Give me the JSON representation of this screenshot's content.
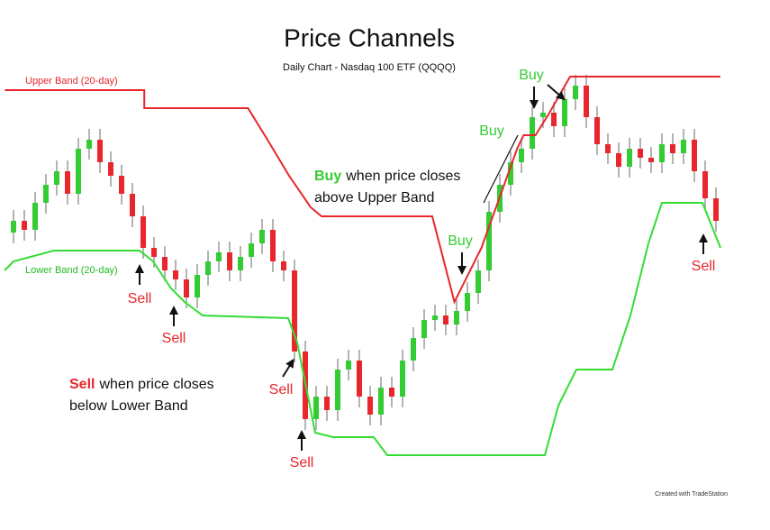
{
  "chart_data": {
    "type": "candlestick",
    "title": "Price Channels",
    "subtitle": "Daily Chart - Nasdaq 100 ETF (QQQQ)",
    "xlim": [
      -1.25,
      65.75
    ],
    "ylim": [
      0,
      450
    ],
    "up_color": "#33cc33",
    "down_color": "#e8262b",
    "wick_color": "#9a9a9a",
    "open": [
      262,
      275,
      265,
      295,
      315,
      330,
      305,
      355,
      365,
      340,
      325,
      305,
      280,
      245,
      235,
      220,
      210,
      190,
      215,
      230,
      240,
      220,
      235,
      250,
      265,
      230,
      220,
      130,
      55,
      80,
      65,
      110,
      120,
      80,
      60,
      90,
      80,
      120,
      145,
      165,
      170,
      160,
      175,
      195,
      220,
      285,
      315,
      340,
      355,
      390,
      395,
      380,
      410,
      425,
      390,
      360,
      350,
      335,
      355,
      345,
      340,
      360,
      350,
      365,
      330,
      300
    ],
    "high": [
      287,
      287,
      307,
      327,
      342,
      342,
      367,
      377,
      377,
      352,
      337,
      317,
      292,
      257,
      247,
      232,
      222,
      227,
      242,
      252,
      252,
      247,
      262,
      277,
      277,
      242,
      232,
      142,
      92,
      92,
      122,
      132,
      132,
      92,
      102,
      102,
      132,
      157,
      177,
      182,
      182,
      187,
      207,
      232,
      297,
      327,
      352,
      367,
      402,
      407,
      407,
      422,
      437,
      437,
      402,
      372,
      362,
      367,
      367,
      357,
      372,
      372,
      377,
      377,
      342,
      312
    ],
    "low": [
      250,
      253,
      253,
      283,
      303,
      293,
      293,
      343,
      328,
      313,
      293,
      268,
      233,
      223,
      208,
      198,
      178,
      178,
      203,
      218,
      208,
      208,
      223,
      238,
      218,
      208,
      118,
      43,
      43,
      53,
      53,
      98,
      68,
      48,
      48,
      68,
      68,
      108,
      133,
      153,
      148,
      148,
      163,
      183,
      208,
      273,
      303,
      328,
      343,
      378,
      368,
      368,
      398,
      378,
      348,
      338,
      323,
      323,
      333,
      328,
      328,
      338,
      338,
      318,
      288,
      263
    ],
    "close": [
      275,
      265,
      295,
      315,
      330,
      305,
      355,
      365,
      340,
      325,
      305,
      280,
      245,
      235,
      220,
      210,
      190,
      215,
      230,
      240,
      220,
      235,
      250,
      265,
      230,
      220,
      130,
      55,
      80,
      65,
      110,
      120,
      80,
      60,
      90,
      80,
      120,
      145,
      165,
      170,
      160,
      175,
      195,
      220,
      285,
      315,
      340,
      355,
      390,
      395,
      380,
      410,
      425,
      390,
      360,
      350,
      335,
      355,
      345,
      340,
      360,
      350,
      365,
      330,
      300,
      275
    ],
    "series": [
      {
        "name": "Upper Band (20-day)",
        "color": "#e8262b",
        "x": [
          -0.8,
          12.1,
          12.1,
          21.7,
          23.5,
          25.5,
          27.5,
          28.5,
          38.75,
          40.8,
          43.3,
          44.5,
          46.6,
          47.2,
          48.3,
          49.6,
          51.5,
          65.4
        ],
        "values": [
          420,
          420,
          400,
          400,
          365,
          325,
          290,
          280,
          280,
          185,
          245,
          285,
          355,
          370,
          370,
          395,
          435,
          435
        ]
      },
      {
        "name": "Lower Band (20-day)",
        "color": "#33dd33",
        "x": [
          -0.83,
          0,
          3.75,
          11.67,
          12.92,
          14.58,
          15.83,
          17.5,
          25.42,
          26.25,
          27.08,
          27.92,
          29.58,
          33.33,
          34.58,
          49.17,
          50.42,
          52.08,
          55.42,
          57.08,
          58.75,
          60,
          63.75,
          65.42
        ],
        "values": [
          220,
          230,
          242,
          242,
          230,
          200,
          185,
          170,
          167,
          140,
          90,
          40,
          35,
          35,
          15,
          15,
          70,
          110,
          110,
          170,
          250,
          295,
          295,
          245
        ]
      }
    ],
    "signals": [
      "Sell",
      "Sell",
      "Sell",
      "Sell",
      "Buy",
      "Buy",
      "Buy",
      "Sell"
    ],
    "buy_note": {
      "keyword": "Buy",
      "line1": "when price closes",
      "line2": "above Upper Band"
    },
    "sell_note": {
      "keyword": "Sell",
      "line1": "when price closes",
      "line2": "below Lower Band"
    },
    "credit": "Created with TradeStation"
  }
}
